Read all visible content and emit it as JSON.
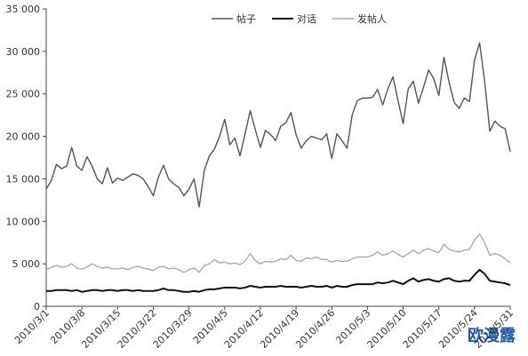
{
  "chart_data": {
    "type": "line",
    "categories": [
      "2010/3/1",
      null,
      null,
      null,
      null,
      null,
      null,
      "2010/3/8",
      null,
      null,
      null,
      null,
      null,
      null,
      "2010/3/15",
      null,
      null,
      null,
      null,
      null,
      null,
      "2010/3/22",
      null,
      null,
      null,
      null,
      null,
      null,
      "2010/3/29",
      null,
      null,
      null,
      null,
      null,
      null,
      "2010/4/5",
      null,
      null,
      null,
      null,
      null,
      null,
      "2010/4/12",
      null,
      null,
      null,
      null,
      null,
      null,
      "2010/4/19",
      null,
      null,
      null,
      null,
      null,
      null,
      "2010/4/26",
      null,
      null,
      null,
      null,
      null,
      null,
      "2010/5/3",
      null,
      null,
      null,
      null,
      null,
      null,
      "2010/5/10",
      null,
      null,
      null,
      null,
      null,
      null,
      "2010/5/17",
      null,
      null,
      null,
      null,
      null,
      null,
      "2010/5/24",
      null,
      null,
      null,
      null,
      null,
      null,
      "2010/5/31"
    ],
    "series": [
      {
        "name": "帖子",
        "color": "#555555",
        "width": 1.4,
        "values": [
          13800,
          14800,
          16700,
          16200,
          16500,
          18700,
          16500,
          16000,
          17600,
          16500,
          15000,
          14400,
          16300,
          14500,
          15100,
          14800,
          15200,
          15600,
          15400,
          15000,
          14100,
          13000,
          15200,
          16600,
          15000,
          14400,
          14000,
          13000,
          13800,
          15000,
          11700,
          16000,
          17700,
          18500,
          20000,
          22000,
          19000,
          19800,
          17700,
          20300,
          23000,
          20800,
          18700,
          20700,
          20200,
          19500,
          21200,
          21600,
          22800,
          20200,
          18600,
          19500,
          20000,
          19800,
          19600,
          20300,
          17400,
          20300,
          19500,
          18600,
          22500,
          24200,
          24500,
          24500,
          24600,
          25500,
          23700,
          25600,
          27000,
          24200,
          21500,
          25600,
          26500,
          23900,
          25800,
          27800,
          26800,
          24800,
          29300,
          26400,
          24000,
          23300,
          24500,
          24100,
          29000,
          31000,
          26400,
          20600,
          21800,
          21200,
          20900,
          18200
        ]
      },
      {
        "name": "对话",
        "color": "#111111",
        "width": 2,
        "values": [
          1800,
          1800,
          1900,
          1900,
          1900,
          1800,
          1900,
          1700,
          1800,
          1900,
          1900,
          1800,
          1900,
          1900,
          1800,
          1900,
          1900,
          1800,
          1900,
          1800,
          1800,
          1800,
          1900,
          2100,
          1900,
          1900,
          1800,
          1700,
          1700,
          1800,
          1700,
          1900,
          2000,
          2000,
          2100,
          2200,
          2200,
          2200,
          2100,
          2200,
          2400,
          2300,
          2200,
          2300,
          2300,
          2300,
          2400,
          2300,
          2300,
          2300,
          2200,
          2300,
          2400,
          2300,
          2300,
          2400,
          2200,
          2400,
          2300,
          2300,
          2500,
          2600,
          2600,
          2600,
          2600,
          2800,
          2700,
          2800,
          3000,
          2800,
          2600,
          3000,
          3300,
          2900,
          3100,
          3200,
          3000,
          2900,
          3200,
          3300,
          3000,
          2900,
          3000,
          3000,
          3700,
          4300,
          3800,
          3000,
          2900,
          2800,
          2700,
          2500
        ]
      },
      {
        "name": "发帖人",
        "color": "#aaaaaa",
        "width": 1.4,
        "values": [
          4300,
          4600,
          4800,
          4600,
          4700,
          5000,
          4500,
          4400,
          4600,
          5000,
          4700,
          4500,
          4600,
          4400,
          4400,
          4500,
          4300,
          4600,
          4700,
          4500,
          4400,
          4200,
          4600,
          4700,
          4400,
          4500,
          4300,
          4000,
          4300,
          4500,
          4000,
          4800,
          5000,
          5500,
          5100,
          5200,
          5000,
          5100,
          4900,
          5300,
          6200,
          5400,
          5000,
          5300,
          5200,
          5300,
          5600,
          5500,
          6000,
          5400,
          5300,
          5700,
          5600,
          5800,
          5500,
          5500,
          5200,
          5400,
          5300,
          5300,
          5600,
          5800,
          5800,
          5800,
          6000,
          6400,
          6000,
          6200,
          6500,
          6100,
          5800,
          6200,
          6600,
          6200,
          6600,
          6800,
          6500,
          6300,
          7300,
          6700,
          6500,
          6400,
          6600,
          6700,
          7800,
          8500,
          7500,
          6000,
          6200,
          6000,
          5600,
          5100
        ]
      }
    ],
    "ylim": [
      0,
      35000
    ],
    "yticks": [
      0,
      {
        "value": 5000,
        "label": "5 000"
      },
      {
        "value": 10000,
        "label": "10 000"
      },
      {
        "value": 15000,
        "label": "15 000"
      },
      {
        "value": 20000,
        "label": "20 000"
      },
      {
        "value": 25000,
        "label": "25 000"
      },
      {
        "value": 30000,
        "label": "30 000"
      },
      {
        "value": 35000,
        "label": "35 000"
      }
    ],
    "grid": false,
    "legend": "top",
    "watermark": "欧漫露"
  }
}
